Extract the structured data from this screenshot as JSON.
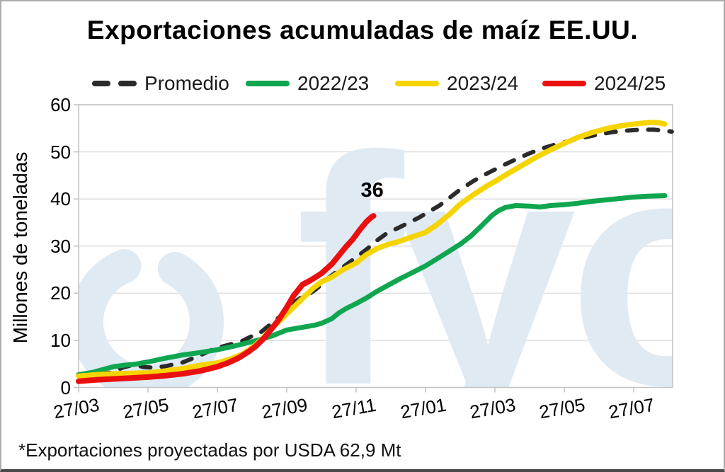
{
  "title": "Exportaciones acumuladas de maíz EE.UU.",
  "note": "*Exportaciones proyectadas por USDA 62,9 Mt",
  "annotation": {
    "text": "36"
  },
  "watermark": {
    "text": "fyo",
    "color": "#dfeaf3"
  },
  "y_axis": {
    "title": "Millones de toneladas",
    "ticks": [
      0,
      10,
      20,
      30,
      40,
      50,
      60
    ]
  },
  "x_axis": {
    "tick_labels": [
      "27/03",
      "27/05",
      "27/07",
      "27/09",
      "27/11",
      "27/01",
      "27/03",
      "27/05",
      "27/07"
    ]
  },
  "colors": {
    "grid": "#dcdcdc",
    "axis": "#c4c4c4",
    "promedio": "#2b2b2b",
    "y2022": "#0fa64f",
    "y2023": "#f6d400",
    "y2024": "#ea1010",
    "watermark": "#dfeaf3"
  },
  "chart_data": {
    "type": "line",
    "title": "Exportaciones acumuladas de maíz EE.UU.",
    "ylabel": "Millones de toneladas",
    "ylim": [
      0,
      60
    ],
    "grid": "horizontal",
    "legend_position": "top",
    "x_unit": "months since 27/03, x ticks every 2 months",
    "x_tick_labels": [
      "27/03",
      "27/05",
      "27/07",
      "27/09",
      "27/11",
      "27/01",
      "27/03",
      "27/05",
      "27/07"
    ],
    "series": [
      {
        "name": "Promedio",
        "color": "#2b2b2b",
        "dashed": true,
        "width": 6,
        "points": [
          [
            0,
            2.4
          ],
          [
            0.5,
            2.8
          ],
          [
            0.9,
            3.1
          ],
          [
            1.3,
            4.3
          ],
          [
            1.6,
            4.8
          ],
          [
            1.9,
            4.3
          ],
          [
            2.2,
            4.2
          ],
          [
            2.5,
            4.5
          ],
          [
            3,
            5.3
          ],
          [
            3.5,
            6.8
          ],
          [
            3.9,
            8.2
          ],
          [
            4.3,
            9.0
          ],
          [
            4.7,
            9.8
          ],
          [
            5,
            10.9
          ],
          [
            5.2,
            11.4
          ],
          [
            5.5,
            13.2
          ],
          [
            5.8,
            15.0
          ],
          [
            6,
            16.6
          ],
          [
            6.2,
            18.0
          ],
          [
            6.4,
            19.0
          ],
          [
            6.6,
            19.6
          ],
          [
            6.8,
            20.6
          ],
          [
            7,
            21.8
          ],
          [
            7.2,
            23.2
          ],
          [
            7.5,
            24.9
          ],
          [
            7.8,
            26.5
          ],
          [
            8,
            27.6
          ],
          [
            8.3,
            29.3
          ],
          [
            8.6,
            31.2
          ],
          [
            8.9,
            32.8
          ],
          [
            9.2,
            33.8
          ],
          [
            9.5,
            34.9
          ],
          [
            9.8,
            36.0
          ],
          [
            10.1,
            37.3
          ],
          [
            10.4,
            38.6
          ],
          [
            10.7,
            40.3
          ],
          [
            11,
            42.0
          ],
          [
            11.4,
            43.9
          ],
          [
            11.8,
            45.5
          ],
          [
            12.2,
            47.0
          ],
          [
            12.6,
            48.4
          ],
          [
            13,
            49.7
          ],
          [
            13.4,
            50.8
          ],
          [
            13.8,
            51.7
          ],
          [
            14.2,
            52.4
          ],
          [
            14.6,
            53.1
          ],
          [
            15,
            53.7
          ],
          [
            15.4,
            54.2
          ],
          [
            15.8,
            54.5
          ],
          [
            16.2,
            54.7
          ],
          [
            16.6,
            54.7
          ],
          [
            17,
            54.4
          ],
          [
            17.1,
            54.3
          ]
        ]
      },
      {
        "name": "2022/23",
        "color": "#0fa64f",
        "dashed": false,
        "width": 7,
        "points": [
          [
            0,
            2.7
          ],
          [
            0.4,
            3.2
          ],
          [
            0.8,
            4.0
          ],
          [
            1,
            4.4
          ],
          [
            1.3,
            4.7
          ],
          [
            1.6,
            4.9
          ],
          [
            2,
            5.4
          ],
          [
            2.5,
            6.2
          ],
          [
            3,
            6.9
          ],
          [
            3.5,
            7.4
          ],
          [
            4,
            8.0
          ],
          [
            4.5,
            8.8
          ],
          [
            5,
            9.7
          ],
          [
            5.3,
            10.3
          ],
          [
            5.6,
            11.0
          ],
          [
            6,
            12.2
          ],
          [
            6.4,
            12.7
          ],
          [
            6.8,
            13.2
          ],
          [
            7,
            13.6
          ],
          [
            7.3,
            14.6
          ],
          [
            7.5,
            15.8
          ],
          [
            7.7,
            16.7
          ],
          [
            8,
            17.8
          ],
          [
            8.3,
            19.0
          ],
          [
            8.6,
            20.4
          ],
          [
            9,
            22.0
          ],
          [
            9.3,
            23.2
          ],
          [
            9.6,
            24.3
          ],
          [
            10,
            25.8
          ],
          [
            10.4,
            27.6
          ],
          [
            10.7,
            29.0
          ],
          [
            11,
            30.4
          ],
          [
            11.3,
            32.1
          ],
          [
            11.6,
            34.2
          ],
          [
            11.9,
            36.4
          ],
          [
            12.1,
            37.5
          ],
          [
            12.3,
            38.2
          ],
          [
            12.6,
            38.6
          ],
          [
            13,
            38.5
          ],
          [
            13.3,
            38.3
          ],
          [
            13.6,
            38.6
          ],
          [
            14,
            38.8
          ],
          [
            14.4,
            39.1
          ],
          [
            14.8,
            39.5
          ],
          [
            15.2,
            39.8
          ],
          [
            15.6,
            40.1
          ],
          [
            16,
            40.4
          ],
          [
            16.4,
            40.6
          ],
          [
            16.9,
            40.7
          ]
        ]
      },
      {
        "name": "2023/24",
        "color": "#f6d400",
        "dashed": false,
        "width": 7.5,
        "points": [
          [
            0,
            2.4
          ],
          [
            0.5,
            2.7
          ],
          [
            1,
            2.9
          ],
          [
            1.5,
            3.0
          ],
          [
            2,
            3.1
          ],
          [
            2.5,
            3.5
          ],
          [
            3,
            4.0
          ],
          [
            3.5,
            4.7
          ],
          [
            4,
            5.2
          ],
          [
            4.4,
            6.1
          ],
          [
            4.7,
            7.0
          ],
          [
            5,
            8.4
          ],
          [
            5.25,
            10.0
          ],
          [
            5.5,
            12.0
          ],
          [
            5.75,
            13.8
          ],
          [
            6,
            15.6
          ],
          [
            6.25,
            17.4
          ],
          [
            6.5,
            19.2
          ],
          [
            6.75,
            21.0
          ],
          [
            7,
            22.4
          ],
          [
            7.3,
            23.4
          ],
          [
            7.6,
            24.9
          ],
          [
            8,
            26.4
          ],
          [
            8.3,
            28.2
          ],
          [
            8.6,
            29.5
          ],
          [
            8.9,
            30.3
          ],
          [
            9.2,
            30.9
          ],
          [
            9.6,
            31.9
          ],
          [
            10,
            32.9
          ],
          [
            10.3,
            34.4
          ],
          [
            10.7,
            36.8
          ],
          [
            11,
            38.9
          ],
          [
            11.4,
            41.0
          ],
          [
            11.8,
            42.9
          ],
          [
            12,
            43.7
          ],
          [
            12.4,
            45.5
          ],
          [
            12.8,
            47.2
          ],
          [
            13.2,
            48.9
          ],
          [
            13.6,
            50.4
          ],
          [
            14,
            51.8
          ],
          [
            14.4,
            53.1
          ],
          [
            14.8,
            54.1
          ],
          [
            15.2,
            54.9
          ],
          [
            15.6,
            55.5
          ],
          [
            16,
            55.9
          ],
          [
            16.4,
            56.2
          ],
          [
            16.7,
            56.2
          ],
          [
            16.9,
            55.9
          ]
        ]
      },
      {
        "name": "2024/25",
        "color": "#ea1010",
        "dashed": false,
        "width": 8,
        "end_label": "36",
        "points": [
          [
            0,
            1.3
          ],
          [
            0.5,
            1.6
          ],
          [
            1,
            1.8
          ],
          [
            1.5,
            2.0
          ],
          [
            2,
            2.2
          ],
          [
            2.5,
            2.5
          ],
          [
            3,
            2.9
          ],
          [
            3.5,
            3.5
          ],
          [
            4,
            4.4
          ],
          [
            4.3,
            5.2
          ],
          [
            4.6,
            6.2
          ],
          [
            4.9,
            7.6
          ],
          [
            5.1,
            8.7
          ],
          [
            5.35,
            10.5
          ],
          [
            5.55,
            12.3
          ],
          [
            5.75,
            14.2
          ],
          [
            6,
            17.0
          ],
          [
            6.2,
            19.5
          ],
          [
            6.45,
            21.8
          ],
          [
            6.7,
            22.8
          ],
          [
            7,
            24.2
          ],
          [
            7.3,
            26.2
          ],
          [
            7.5,
            28.0
          ],
          [
            7.7,
            29.8
          ],
          [
            7.9,
            31.4
          ],
          [
            8.1,
            33.4
          ],
          [
            8.3,
            35.2
          ],
          [
            8.45,
            36.2
          ],
          [
            8.5,
            36.4
          ]
        ]
      }
    ]
  }
}
